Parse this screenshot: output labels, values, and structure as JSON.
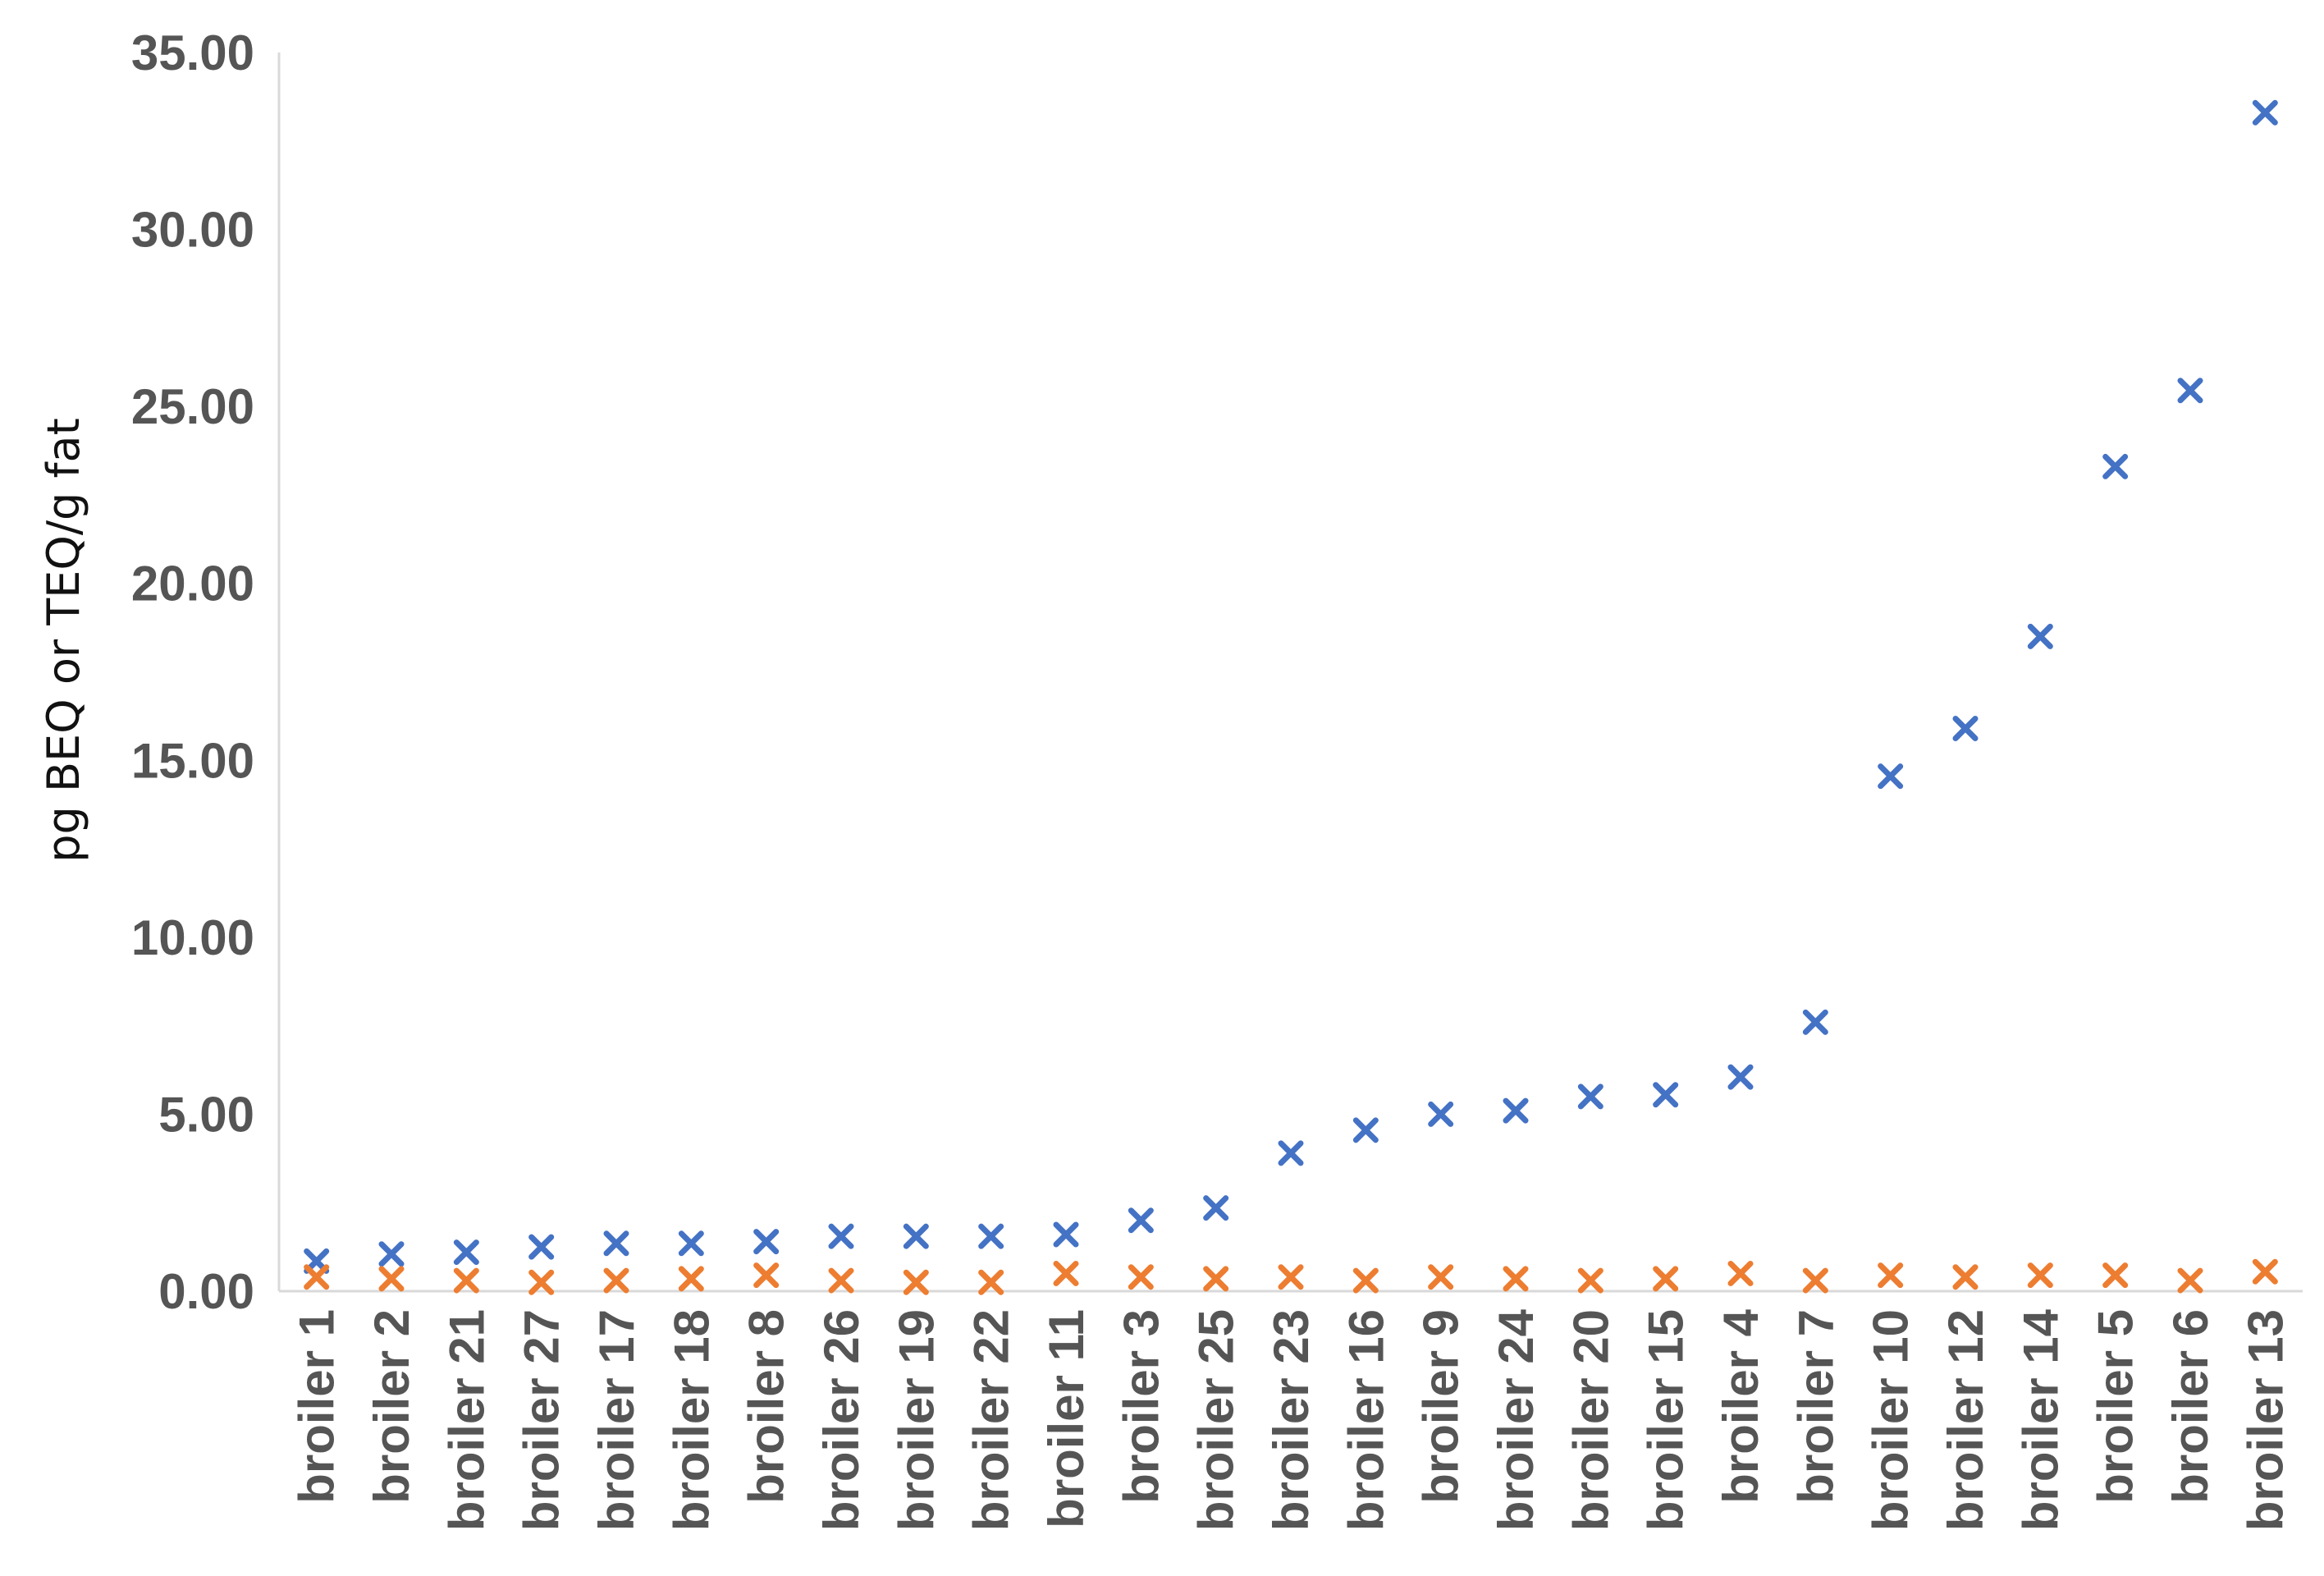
{
  "chart_data": {
    "type": "scatter",
    "title": "",
    "xlabel": "",
    "ylabel": "pg BEQ or TEQ/g fat",
    "ylim": [
      0,
      35
    ],
    "grid": false,
    "legend": "none",
    "marker": "x",
    "y_tick_labels": [
      "0.00",
      "5.00",
      "10.00",
      "15.00",
      "20.00",
      "25.00",
      "30.00",
      "35.00"
    ],
    "categories": [
      "broiler 1",
      "broiler 2",
      "broiler 21",
      "broiler 27",
      "broiler 17",
      "broiler 18",
      "broiler 8",
      "broiler 26",
      "broiler 19",
      "broiler 22",
      "broiler 11",
      "broiler 3",
      "broiler 25",
      "broiler 23",
      "broiler 16",
      "broiler 9",
      "broiler 24",
      "broiler 20",
      "broiler 15",
      "broiler 4",
      "broiler 7",
      "broiler 10",
      "broiler 12",
      "broiler 14",
      "broiler 5",
      "broiler 6",
      "broiler 13"
    ],
    "series": [
      {
        "color": "#4472C4",
        "values": [
          0.85,
          1.05,
          1.1,
          1.25,
          1.35,
          1.35,
          1.4,
          1.55,
          1.55,
          1.55,
          1.6,
          2.0,
          2.35,
          3.9,
          4.55,
          5.0,
          5.1,
          5.5,
          5.55,
          6.05,
          7.6,
          14.55,
          15.9,
          18.5,
          23.3,
          25.45,
          33.3
        ]
      },
      {
        "color": "#ED7D31",
        "values": [
          0.4,
          0.35,
          0.3,
          0.25,
          0.3,
          0.35,
          0.45,
          0.3,
          0.25,
          0.25,
          0.5,
          0.4,
          0.35,
          0.4,
          0.3,
          0.4,
          0.35,
          0.3,
          0.35,
          0.5,
          0.3,
          0.45,
          0.4,
          0.45,
          0.45,
          0.3,
          0.55
        ]
      }
    ]
  }
}
